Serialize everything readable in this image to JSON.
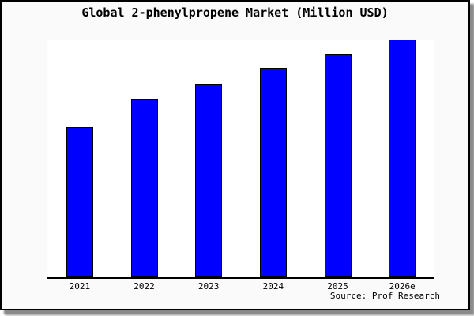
{
  "title": "Global 2-phenylpropene Market (Million USD)",
  "source": "Source: Prof Research",
  "colors": {
    "bar_fill": "#0000ff",
    "bar_border": "#000000",
    "figure_background": "#fafafa",
    "plot_background": "#ffffff",
    "axis": "#000000",
    "figure_border": "#000000"
  },
  "chart_data": {
    "type": "bar",
    "title": "Global 2-phenylpropene Market (Million USD)",
    "categories": [
      "2021",
      "2022",
      "2023",
      "2024",
      "2025",
      "2026e"
    ],
    "values": [
      63,
      75,
      81.5,
      88,
      94,
      100
    ],
    "value_scale": "relative estimate (chart shows no y-axis tick labels)",
    "xlabel": "",
    "ylabel": "",
    "ylim": [
      0,
      100
    ],
    "grid": false,
    "legend": false,
    "source": "Source: Prof Research",
    "bar_color": "#0000ff"
  }
}
